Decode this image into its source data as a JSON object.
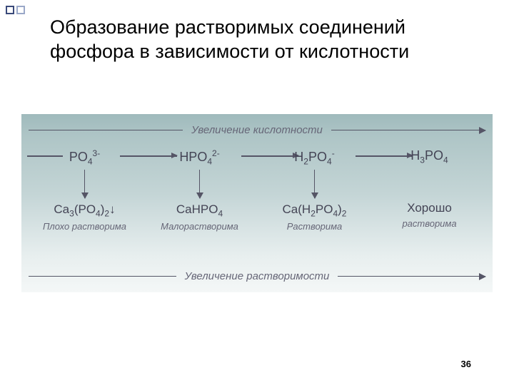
{
  "decoration": {
    "sq1_border": "#3a4a7a",
    "sq2_border": "#9aa8c8"
  },
  "title": "Образование растворимых соединений фосфора в зависимости от кислотности",
  "diagram": {
    "top_label": "Увеличение кислотности",
    "bottom_label": "Увеличение растворимости",
    "columns": [
      {
        "ion_html": "PO<sub>4</sub><sup>3-</sup>",
        "compound_html": "Ca<sub>3</sub>(PO<sub>4</sub>)<sub>2</sub>↓",
        "solubility": "Плохо растворима"
      },
      {
        "ion_html": "HPO<sub>4</sub><sup>2-</sup>",
        "compound_html": "CaHPO<sub>4</sub>",
        "solubility": "Малорастворима"
      },
      {
        "ion_html": "H<sub>2</sub>PO<sub>4</sub><sup>-</sup>",
        "compound_html": "Ca(H<sub>2</sub>PO<sub>4</sub>)<sub>2</sub>",
        "solubility": "Растворима"
      },
      {
        "ion_html": "H<sub>3</sub>PO<sub>4</sub>",
        "compound_html": "Хорошо",
        "solubility": "растворима"
      }
    ],
    "gradient_top": "#9fbabc",
    "gradient_bottom": "#f4f7f7",
    "text_color": "#445",
    "label_color": "#667",
    "arrow_color": "#556"
  },
  "page_number": "36"
}
